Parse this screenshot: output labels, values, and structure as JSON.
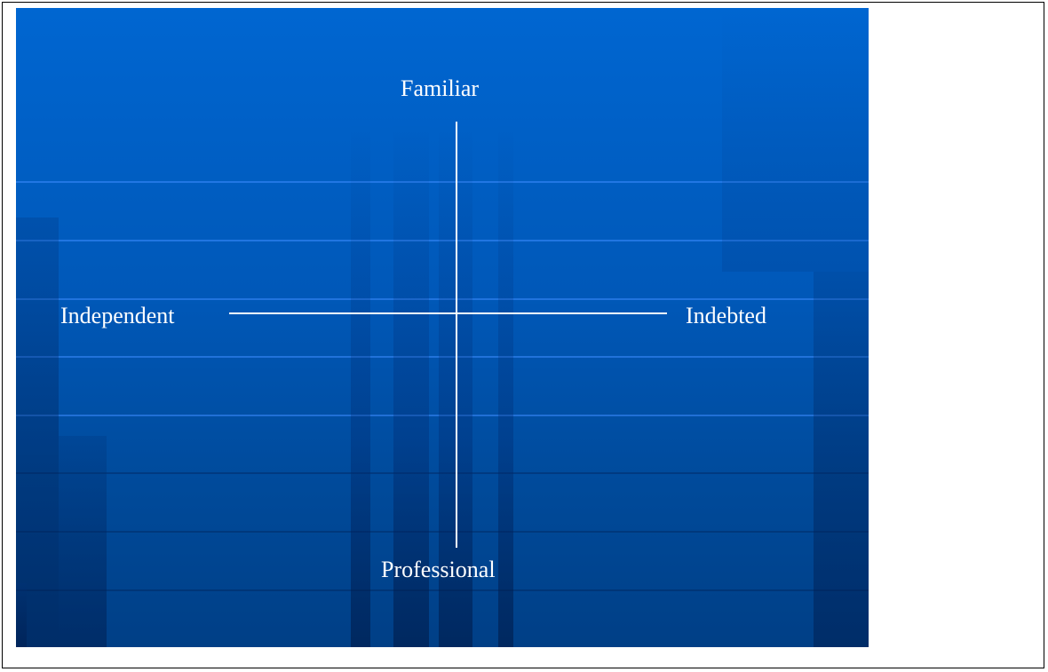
{
  "diagram": {
    "axis_top_label": "Familiar",
    "axis_bottom_label": "Professional",
    "axis_left_label": "Independent",
    "axis_right_label": "Indebted",
    "background_color_top": "#0066d1",
    "background_color_bottom": "#003f86",
    "line_color": "#ffffff",
    "text_color": "#ffffff"
  }
}
